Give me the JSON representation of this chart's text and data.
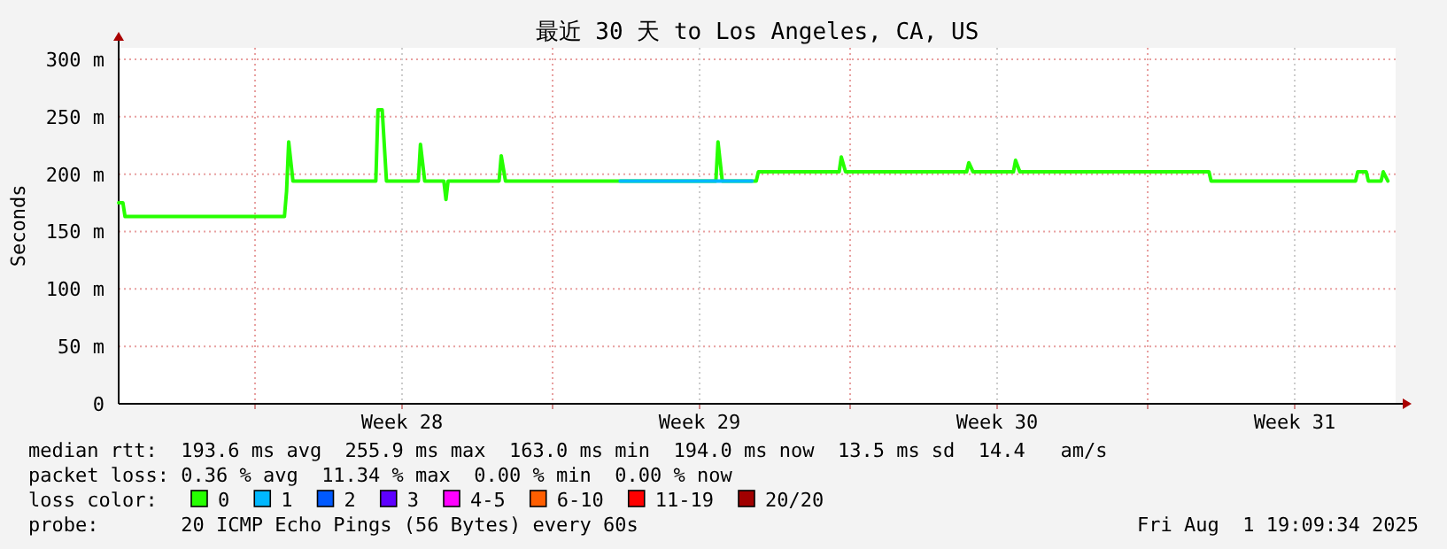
{
  "chart_data": {
    "type": "line",
    "title": "最近 30 天 to Los Angeles, CA, US",
    "ylabel": "Seconds",
    "xlim": [
      "2025-07-02T19:00",
      "2025-08-01T20:00"
    ],
    "ylim": [
      0,
      310
    ],
    "xticks": [
      {
        "value": "2025-07-06T00:00",
        "label": null
      },
      {
        "value": "2025-07-09T11:00",
        "label": "Week 28"
      },
      {
        "value": "2025-07-13T00:00",
        "label": null
      },
      {
        "value": "2025-07-16T11:00",
        "label": "Week 29"
      },
      {
        "value": "2025-07-20T00:00",
        "label": null
      },
      {
        "value": "2025-07-23T11:00",
        "label": "Week 30"
      },
      {
        "value": "2025-07-27T00:00",
        "label": null
      },
      {
        "value": "2025-07-30T11:00",
        "label": "Week 31"
      }
    ],
    "yticks": [
      0,
      {
        "value": 50,
        "label": "50 m"
      },
      {
        "value": 100,
        "label": "100 m"
      },
      {
        "value": 150,
        "label": "150 m"
      },
      {
        "value": 200,
        "label": "200 m"
      },
      {
        "value": 250,
        "label": "250 m"
      },
      {
        "value": 300,
        "label": "300 m"
      }
    ],
    "grid": true,
    "legend": "bottom",
    "legend_title": "loss color:",
    "annotations": [
      "median rtt:  193.6 ms avg  255.9 ms max  163.0 ms min  194.0 ms now  13.5 ms sd  14.4   am/s",
      "packet loss: 0.36 % avg  11.34 % max  0.00 % min  0.00 % now",
      "probe:       20 ICMP Echo Pings (56 Bytes) every 60s",
      "Fri Aug  1 19:09:34 2025"
    ],
    "series": [
      {
        "name": "0",
        "color": "#26ff00",
        "x": [
          "2025-07-02T19:00",
          "2025-07-02T21:24",
          "2025-07-02T22:36",
          "2025-07-03T02:12",
          "2025-07-06T16:36",
          "2025-07-06T17:48",
          "2025-07-06T19:00",
          "2025-07-06T21:24",
          "2025-07-06T23:48",
          "2025-07-08T20:12",
          "2025-07-08T21:24",
          "2025-07-08T23:48",
          "2025-07-09T02:12",
          "2025-07-09T20:12",
          "2025-07-09T21:24",
          "2025-07-09T23:48",
          "2025-07-10T10:36",
          "2025-07-10T11:48",
          "2025-07-10T13:00",
          "2025-07-11T17:48",
          "2025-07-11T19:00",
          "2025-07-11T21:24",
          "2025-07-16T20:12",
          "2025-07-16T21:24",
          "2025-07-16T23:48",
          "2025-07-17T19:00",
          "2025-07-17T20:12",
          "2025-07-19T17:48",
          "2025-07-19T19:00",
          "2025-07-19T21:24",
          "2025-07-22T17:48",
          "2025-07-22T19:00",
          "2025-07-22T21:24",
          "2025-07-23T20:12",
          "2025-07-23T21:24",
          "2025-07-23T23:48",
          "2025-07-28T10:36",
          "2025-07-28T11:48",
          "2025-07-31T21:24",
          "2025-07-31T22:36",
          "2025-08-01T03:24",
          "2025-08-01T04:36",
          "2025-08-01T11:48",
          "2025-08-01T13:00",
          "2025-08-01T15:36"
        ],
        "values": [
          175,
          175,
          163,
          163,
          163,
          185,
          228,
          194,
          194,
          194,
          256,
          256,
          194,
          194,
          226,
          194,
          194,
          178,
          194,
          194,
          216,
          194,
          194,
          228,
          194,
          194,
          202,
          202,
          215,
          202,
          202,
          210,
          202,
          202,
          212,
          202,
          202,
          194,
          194,
          202,
          202,
          194,
          194,
          202,
          194
        ]
      },
      {
        "name": "1",
        "color": "#00b8ff",
        "x": [
          "2025-07-14T14:12",
          "2025-07-17T16:36"
        ],
        "values": [
          194,
          194
        ]
      },
      {
        "name": "2",
        "color": "#0059ff"
      },
      {
        "name": "3",
        "color": "#5e00ff"
      },
      {
        "name": "4-5",
        "color": "#ff00ff"
      },
      {
        "name": "6-10",
        "color": "#ff5e00"
      },
      {
        "name": "11-19",
        "color": "#ff0000"
      },
      {
        "name": "20/20",
        "color": "#a10000"
      }
    ]
  }
}
